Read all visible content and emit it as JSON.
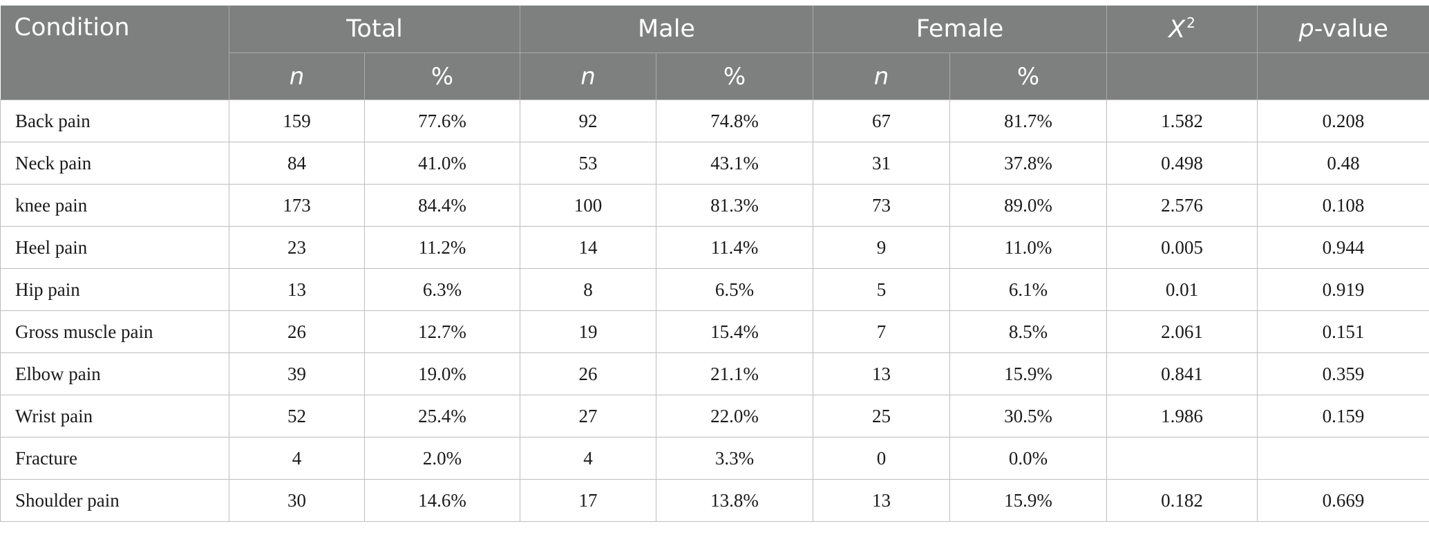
{
  "table": {
    "headers": {
      "condition": "Condition",
      "total": "Total",
      "male": "Male",
      "female": "Female",
      "chi_square_symbol": "X",
      "chi_square_superscript": "2",
      "p_value_prefix": "p",
      "p_value_suffix": "-value",
      "n": "n",
      "percent": "%"
    },
    "rows": [
      {
        "condition": "Back pain",
        "total_n": "159",
        "total_pct": "77.6%",
        "male_n": "92",
        "male_pct": "74.8%",
        "female_n": "67",
        "female_pct": "81.7%",
        "chi2": "1.582",
        "p": "0.208"
      },
      {
        "condition": "Neck pain",
        "total_n": "84",
        "total_pct": "41.0%",
        "male_n": "53",
        "male_pct": "43.1%",
        "female_n": "31",
        "female_pct": "37.8%",
        "chi2": "0.498",
        "p": "0.48"
      },
      {
        "condition": "knee pain",
        "total_n": "173",
        "total_pct": "84.4%",
        "male_n": "100",
        "male_pct": "81.3%",
        "female_n": "73",
        "female_pct": "89.0%",
        "chi2": "2.576",
        "p": "0.108"
      },
      {
        "condition": "Heel pain",
        "total_n": "23",
        "total_pct": "11.2%",
        "male_n": "14",
        "male_pct": "11.4%",
        "female_n": "9",
        "female_pct": "11.0%",
        "chi2": "0.005",
        "p": "0.944"
      },
      {
        "condition": "Hip pain",
        "total_n": "13",
        "total_pct": "6.3%",
        "male_n": "8",
        "male_pct": "6.5%",
        "female_n": "5",
        "female_pct": "6.1%",
        "chi2": "0.01",
        "p": "0.919"
      },
      {
        "condition": "Gross muscle pain",
        "total_n": "26",
        "total_pct": "12.7%",
        "male_n": "19",
        "male_pct": "15.4%",
        "female_n": "7",
        "female_pct": "8.5%",
        "chi2": "2.061",
        "p": "0.151"
      },
      {
        "condition": "Elbow pain",
        "total_n": "39",
        "total_pct": "19.0%",
        "male_n": "26",
        "male_pct": "21.1%",
        "female_n": "13",
        "female_pct": "15.9%",
        "chi2": "0.841",
        "p": "0.359"
      },
      {
        "condition": "Wrist pain",
        "total_n": "52",
        "total_pct": "25.4%",
        "male_n": "27",
        "male_pct": "22.0%",
        "female_n": "25",
        "female_pct": "30.5%",
        "chi2": "1.986",
        "p": "0.159"
      },
      {
        "condition": "Fracture",
        "total_n": "4",
        "total_pct": "2.0%",
        "male_n": "4",
        "male_pct": "3.3%",
        "female_n": "0",
        "female_pct": "0.0%",
        "chi2": "",
        "p": ""
      },
      {
        "condition": "Shoulder pain",
        "total_n": "30",
        "total_pct": "14.6%",
        "male_n": "17",
        "male_pct": "13.8%",
        "female_n": "13",
        "female_pct": "15.9%",
        "chi2": "0.182",
        "p": "0.669"
      }
    ]
  }
}
